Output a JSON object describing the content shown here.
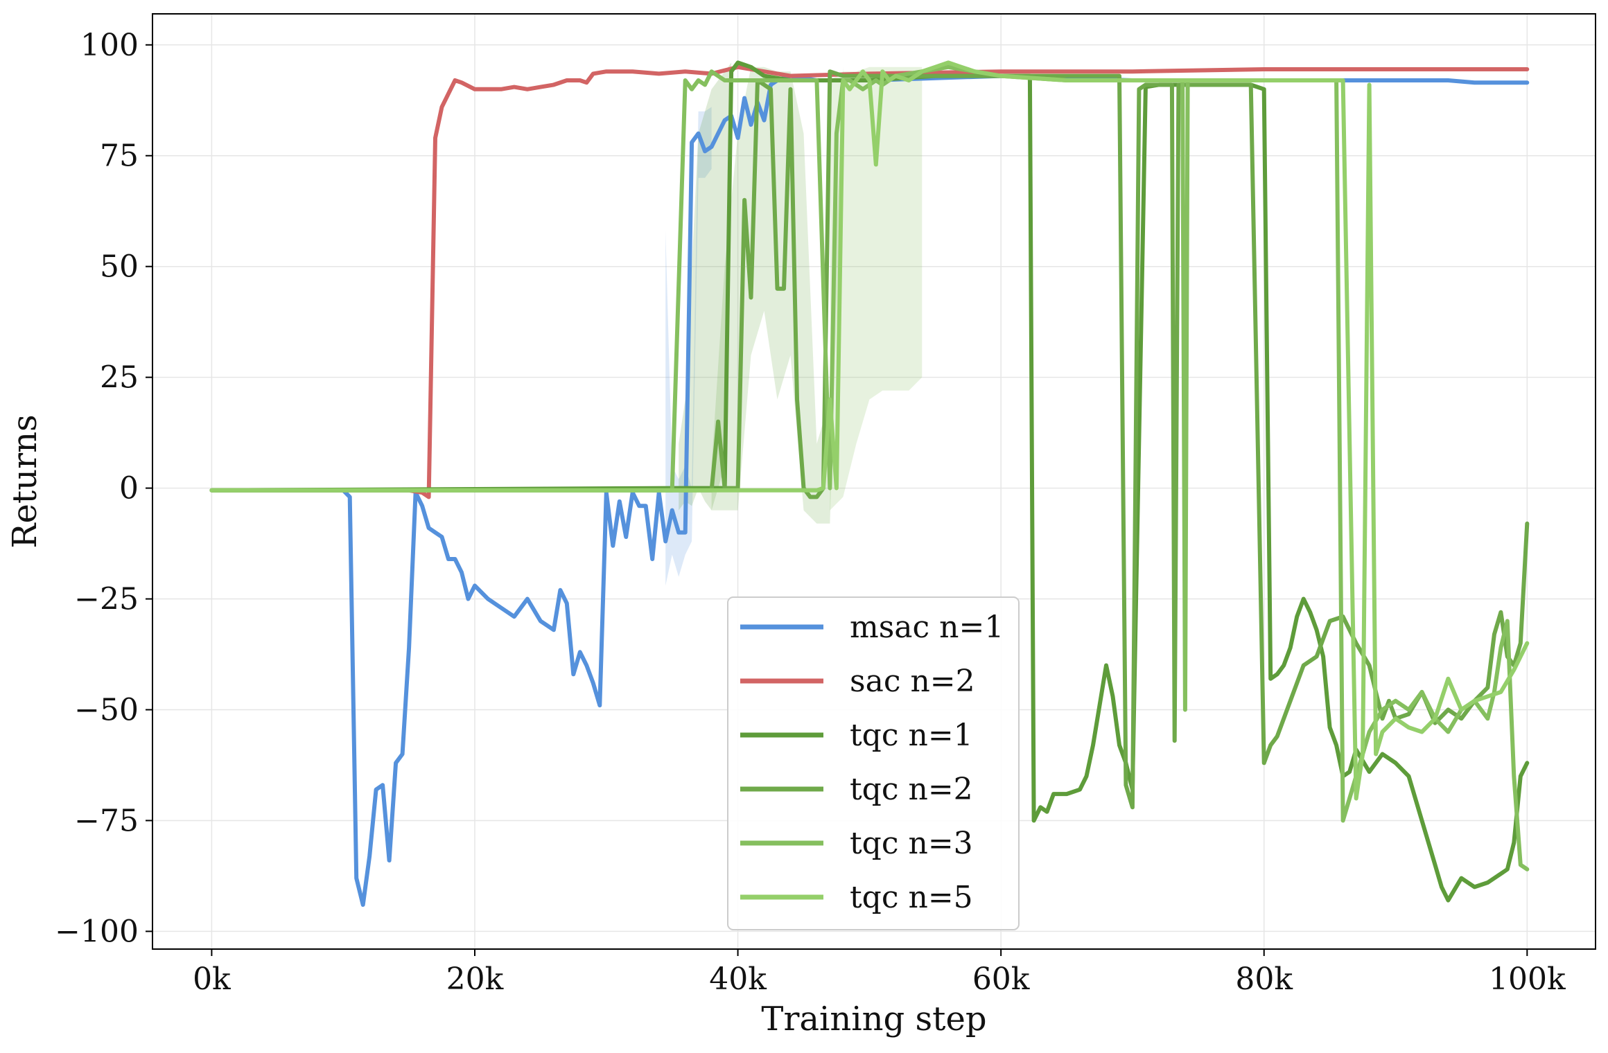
{
  "chart_data": {
    "type": "line",
    "xlabel": "Training step",
    "ylabel": "Returns",
    "xlim": [
      -4500,
      105200
    ],
    "ylim": [
      -104,
      107
    ],
    "x_ticks": [
      0,
      20000,
      40000,
      60000,
      80000,
      100000
    ],
    "x_tick_labels": [
      "0k",
      "20k",
      "40k",
      "60k",
      "80k",
      "100k"
    ],
    "y_ticks": [
      100,
      75,
      50,
      25,
      0,
      -25,
      -50,
      -75,
      -100
    ],
    "y_tick_labels": [
      "100",
      "75",
      "50",
      "25",
      "0",
      "−25",
      "−50",
      "−75",
      "−100"
    ],
    "grid": true,
    "legend_position": "lower-center",
    "series": [
      {
        "name": "msac n=1",
        "color": "#5591dc",
        "x": [
          0,
          10000,
          10500,
          11000,
          11500,
          12000,
          12500,
          13000,
          13500,
          14000,
          14500,
          15000,
          15500,
          16000,
          16500,
          17000,
          17500,
          18000,
          18500,
          19000,
          19500,
          20000,
          21000,
          22000,
          23000,
          24000,
          25000,
          26000,
          26500,
          27000,
          27500,
          28000,
          28500,
          29000,
          29500,
          30000,
          30500,
          31000,
          31500,
          32000,
          32500,
          33000,
          33500,
          34000,
          34500,
          35000,
          35500,
          36000,
          36500,
          37000,
          37500,
          38000,
          38500,
          39000,
          39500,
          40000,
          40500,
          41000,
          41500,
          42000,
          42500,
          43000,
          44000,
          46000,
          50000,
          60000,
          70000,
          80000,
          85000,
          88000,
          90000,
          92000,
          94000,
          96000,
          98000,
          100000
        ],
        "values": [
          -0.5,
          -0.5,
          -2,
          -88,
          -94,
          -83,
          -68,
          -67,
          -84,
          -62,
          -60,
          -36,
          -1,
          -4,
          -9,
          -10,
          -11,
          -16,
          -16,
          -19,
          -25,
          -22,
          -25,
          -27,
          -29,
          -25,
          -30,
          -32,
          -23,
          -26,
          -42,
          -37,
          -40,
          -44,
          -49,
          -1,
          -13,
          -3,
          -11,
          -1,
          -4,
          -4,
          -16,
          -1,
          -12,
          -5,
          -10,
          -10,
          78,
          80,
          76,
          77,
          80,
          83,
          84,
          79,
          88,
          82,
          87,
          83,
          91,
          92,
          93,
          92,
          92,
          93,
          92,
          92,
          92,
          92,
          92,
          92,
          92,
          91.5,
          91.5,
          91.5
        ],
        "band_x": [
          34500,
          35000,
          35500,
          36000,
          36500,
          37000,
          37500,
          38000
        ],
        "band_low": [
          -22,
          -15,
          -20,
          -15,
          -12,
          70,
          70,
          72
        ],
        "band_high": [
          58,
          5,
          2,
          5,
          0,
          85,
          85,
          86
        ]
      },
      {
        "name": "sac n=2",
        "color": "#d26464",
        "x": [
          0,
          15000,
          16000,
          16500,
          17000,
          17500,
          18000,
          18500,
          19000,
          20000,
          21000,
          22000,
          23000,
          24000,
          25000,
          26000,
          27000,
          28000,
          28500,
          29000,
          30000,
          32000,
          34000,
          36000,
          38000,
          40000,
          44000,
          50000,
          60000,
          70000,
          80000,
          90000,
          100000
        ],
        "values": [
          -0.5,
          -0.5,
          -1,
          -2,
          79,
          86,
          89,
          92,
          91.5,
          90,
          90,
          90,
          90.5,
          90,
          90.5,
          91,
          92,
          92,
          91.5,
          93.5,
          94,
          94,
          93.5,
          94,
          93.5,
          95,
          93,
          93.5,
          94,
          94,
          94.5,
          94.5,
          94.5
        ]
      },
      {
        "name": "tqc n=1",
        "color": "#5e9c3a",
        "x": [
          0,
          35000,
          36500,
          37000,
          37500,
          38000,
          38500,
          39000,
          39500,
          40000,
          40500,
          41000,
          42000,
          44000,
          46000,
          50000,
          55000,
          60000,
          62000,
          62200,
          62500,
          63000,
          63500,
          64000,
          65000,
          66000,
          66500,
          67000,
          67500,
          68000,
          68500,
          69000,
          69500,
          70000,
          71000,
          72000,
          73000,
          73500,
          74000,
          74500,
          75000,
          75500,
          76000,
          77000,
          77500,
          78000,
          79000,
          80000,
          80500,
          81000,
          81500,
          82000,
          82500,
          83000,
          83500,
          84000,
          84500,
          85000,
          85500,
          86000,
          86500,
          87000,
          88000,
          89000,
          90000,
          91000,
          92000,
          93000,
          93500,
          94000,
          95000,
          96000,
          97000,
          98000,
          98500,
          99000,
          99500,
          100000
        ],
        "values": [
          -0.5,
          0,
          0,
          0,
          0,
          0,
          0,
          0,
          94,
          96,
          95.5,
          95,
          93,
          92,
          92,
          92,
          93,
          93,
          93,
          93,
          -75,
          -72,
          -73,
          -69,
          -69,
          -68,
          -65,
          -58,
          -49,
          -40,
          -47,
          -58,
          -62,
          -68,
          90.5,
          91,
          91,
          91,
          91,
          91,
          91,
          91,
          91,
          91,
          91,
          91,
          91,
          90,
          -43,
          -42,
          -40,
          -36,
          -29,
          -25,
          -28,
          -32,
          -38,
          -54,
          -58,
          -65,
          -64,
          -59,
          -64,
          -60,
          -62,
          -65,
          -75,
          -85,
          -90,
          -93,
          -88,
          -90,
          -89,
          -87,
          -86,
          -80,
          -65,
          -62
        ],
        "band_x": [
          35500,
          36000,
          36500,
          37000,
          37500,
          38000,
          38500,
          39000,
          39500
        ],
        "band_low": [
          -5,
          -3,
          -4,
          0,
          -3,
          -5,
          0,
          5,
          90
        ],
        "band_high": [
          10,
          20,
          50,
          80,
          85,
          90,
          92,
          94,
          96
        ]
      },
      {
        "name": "tqc n=2",
        "color": "#6fa94a",
        "x": [
          0,
          35000,
          38000,
          38500,
          39000,
          39500,
          40000,
          40500,
          41000,
          41500,
          42000,
          42500,
          43000,
          43500,
          44000,
          44500,
          45000,
          45500,
          46000,
          46500,
          47000,
          48000,
          50000,
          60000,
          69000,
          69500,
          70000,
          70500,
          71000,
          72000,
          73000,
          73200,
          73500,
          74000,
          74500,
          75000,
          76000,
          77000,
          78000,
          79000,
          80000,
          80500,
          81000,
          82000,
          83000,
          84000,
          85000,
          86000,
          87000,
          88000,
          89000,
          89500,
          90000,
          91000,
          92000,
          93000,
          94000,
          95000,
          96000,
          97000,
          97500,
          98000,
          98500,
          99000,
          99500,
          100000
        ],
        "values": [
          -0.5,
          -0.5,
          -0.5,
          15,
          0,
          0,
          0,
          65,
          43,
          92,
          91,
          90,
          45,
          45,
          90,
          20,
          0,
          -2,
          -2,
          0,
          94,
          93,
          93,
          93,
          93,
          -67,
          -72,
          90,
          91,
          91,
          91,
          -57,
          91,
          91,
          91,
          91,
          91,
          91,
          91,
          91,
          -62,
          -58,
          -56,
          -48,
          -40,
          -38,
          -30,
          -29,
          -35,
          -40,
          -52,
          -48,
          -52,
          -51,
          -46,
          -53,
          -50,
          -52,
          -48,
          -45,
          -33,
          -28,
          -38,
          -40,
          -35,
          -8
        ],
        "band_x": [
          38000,
          39000,
          40000,
          41000,
          42000,
          43000,
          44000,
          45000,
          46000,
          47000,
          48000
        ],
        "band_low": [
          -5,
          -5,
          -5,
          30,
          40,
          20,
          30,
          -5,
          -8,
          -8,
          88
        ],
        "band_high": [
          5,
          50,
          80,
          95,
          95,
          94,
          94,
          80,
          10,
          20,
          95
        ]
      },
      {
        "name": "tqc n=3",
        "color": "#85bf5e",
        "x": [
          0,
          35000,
          36000,
          36500,
          37000,
          37500,
          38000,
          38500,
          39000,
          40000,
          41000,
          42000,
          44000,
          46000,
          47000,
          47500,
          48000,
          48500,
          49000,
          49500,
          50000,
          50500,
          51000,
          51500,
          52000,
          54000,
          56000,
          58000,
          60000,
          65000,
          70000,
          73800,
          74000,
          74200,
          75000,
          80000,
          84000,
          85500,
          86000,
          86500,
          87000,
          88000,
          89000,
          90000,
          91000,
          92000,
          93000,
          94000,
          95000,
          96000,
          97000,
          97500,
          98000,
          98500,
          99000,
          99500,
          100000
        ],
        "values": [
          -0.5,
          -0.5,
          92,
          90,
          92,
          91,
          94,
          93,
          92,
          92,
          92,
          92,
          92,
          92,
          0,
          80,
          92,
          92,
          91,
          90,
          91,
          92,
          91,
          92,
          93,
          94,
          95,
          94,
          93,
          92,
          92,
          92,
          -50,
          92,
          92,
          92,
          92,
          92,
          -75,
          -70,
          -65,
          -55,
          -50,
          -48,
          -50,
          -46,
          -52,
          -55,
          -50,
          -48,
          -52,
          -46,
          -36,
          -30,
          -65,
          -85,
          -86
        ],
        "band_x": [
          47000,
          48000,
          49000,
          50000,
          51000,
          52000,
          53000,
          54000
        ],
        "band_low": [
          -5,
          -2,
          10,
          20,
          22,
          22,
          22,
          25
        ],
        "band_high": [
          92,
          94,
          94,
          95,
          95,
          95,
          95,
          95
        ]
      },
      {
        "name": "tqc n=5",
        "color": "#94cf6a",
        "x": [
          0,
          35000,
          46000,
          46500,
          47000,
          47500,
          48000,
          48500,
          49000,
          49500,
          50000,
          50500,
          51000,
          51500,
          52000,
          53000,
          54000,
          55000,
          56000,
          57000,
          58000,
          60000,
          65000,
          70000,
          75000,
          80000,
          85000,
          86000,
          87000,
          87500,
          88000,
          88500,
          89000,
          90000,
          91000,
          92000,
          93000,
          94000,
          95000,
          96000,
          97000,
          98000,
          99000,
          99500,
          100000
        ],
        "values": [
          -0.5,
          -0.5,
          -0.5,
          0,
          20,
          0,
          92,
          90,
          92,
          94,
          92,
          73,
          94,
          92,
          93,
          92,
          94,
          95,
          96,
          95,
          94,
          93,
          92,
          92,
          92,
          92,
          92,
          92,
          -70,
          -60,
          91,
          -60,
          -55,
          -52,
          -54,
          -55,
          -52,
          -43,
          -50,
          -48,
          -47,
          -46,
          -41,
          -38,
          -35
        ]
      }
    ]
  }
}
